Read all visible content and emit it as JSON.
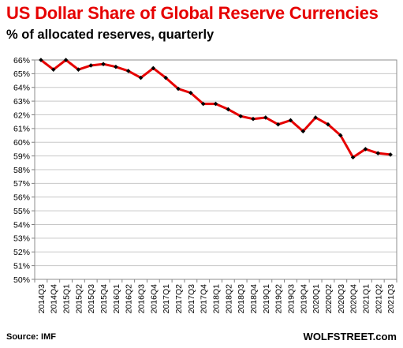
{
  "title": "US Dollar Share of Global  Reserve Currencies",
  "subtitle": "% of allocated reserves, quarterly",
  "source": "Source: IMF",
  "credit": "WOLFSTREET.com",
  "colors": {
    "line": "#e60000",
    "marker": "#000000",
    "grid": "#c8c8c8",
    "title": "#e60000"
  },
  "chart_data": {
    "type": "line",
    "title": "US Dollar Share of Global  Reserve Currencies",
    "subtitle": "% of allocated reserves, quarterly",
    "xlabel": "",
    "ylabel": "",
    "ylim": [
      50,
      66
    ],
    "yticks": [
      "50%",
      "51%",
      "52%",
      "53%",
      "54%",
      "55%",
      "56%",
      "57%",
      "58%",
      "59%",
      "60%",
      "61%",
      "62%",
      "63%",
      "64%",
      "65%",
      "66%"
    ],
    "grid": true,
    "categories": [
      "2014Q3",
      "2014Q4",
      "2015Q1",
      "2015Q2",
      "2015Q3",
      "2015Q4",
      "2016Q1",
      "2016Q2",
      "2016Q3",
      "2016Q4",
      "2017Q1",
      "2017Q2",
      "2017Q3",
      "2017Q4",
      "2018Q1",
      "2018Q2",
      "2018Q3",
      "2018Q4",
      "2019Q1",
      "2019Q2",
      "2019Q3",
      "2019Q4",
      "2020Q1",
      "2020Q2",
      "2020Q3",
      "2020Q4",
      "2021Q1",
      "2021Q2",
      "2021Q3"
    ],
    "series": [
      {
        "values": [
          66.0,
          65.3,
          66.0,
          65.3,
          65.6,
          65.7,
          65.5,
          65.2,
          64.7,
          65.4,
          64.7,
          63.9,
          63.6,
          62.8,
          62.8,
          62.4,
          61.9,
          61.7,
          61.8,
          61.3,
          61.6,
          60.8,
          61.8,
          61.3,
          60.5,
          58.9,
          59.5,
          59.2,
          59.1
        ]
      }
    ]
  }
}
